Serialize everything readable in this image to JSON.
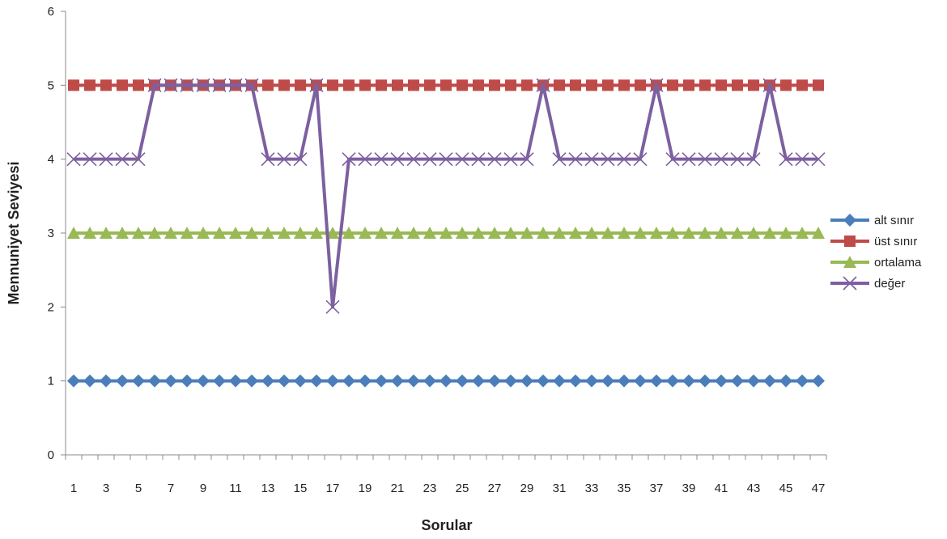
{
  "chart_data": {
    "type": "line",
    "xlabel": "Sorular",
    "ylabel": "Mennuniyet Seviyesi",
    "ylim": [
      0,
      6
    ],
    "yticks": [
      0,
      1,
      2,
      3,
      4,
      5,
      6
    ],
    "x": [
      1,
      2,
      3,
      4,
      5,
      6,
      7,
      8,
      9,
      10,
      11,
      12,
      13,
      14,
      15,
      16,
      17,
      18,
      19,
      20,
      21,
      22,
      23,
      24,
      25,
      26,
      27,
      28,
      29,
      30,
      31,
      32,
      33,
      34,
      35,
      36,
      37,
      38,
      39,
      40,
      41,
      42,
      43,
      44,
      45,
      46,
      47
    ],
    "xtick_labels": [
      "1",
      "3",
      "5",
      "7",
      "9",
      "11",
      "13",
      "15",
      "17",
      "19",
      "21",
      "23",
      "25",
      "27",
      "29",
      "31",
      "33",
      "35",
      "37",
      "39",
      "41",
      "43",
      "45",
      "47"
    ],
    "legend_position": "right",
    "grid": false,
    "series": [
      {
        "name": "alt sınır",
        "color": "#4a7ebb",
        "marker": "diamond",
        "values": [
          1,
          1,
          1,
          1,
          1,
          1,
          1,
          1,
          1,
          1,
          1,
          1,
          1,
          1,
          1,
          1,
          1,
          1,
          1,
          1,
          1,
          1,
          1,
          1,
          1,
          1,
          1,
          1,
          1,
          1,
          1,
          1,
          1,
          1,
          1,
          1,
          1,
          1,
          1,
          1,
          1,
          1,
          1,
          1,
          1,
          1,
          1
        ]
      },
      {
        "name": "üst sınır",
        "color": "#be4b48",
        "marker": "square",
        "values": [
          5,
          5,
          5,
          5,
          5,
          5,
          5,
          5,
          5,
          5,
          5,
          5,
          5,
          5,
          5,
          5,
          5,
          5,
          5,
          5,
          5,
          5,
          5,
          5,
          5,
          5,
          5,
          5,
          5,
          5,
          5,
          5,
          5,
          5,
          5,
          5,
          5,
          5,
          5,
          5,
          5,
          5,
          5,
          5,
          5,
          5,
          5
        ]
      },
      {
        "name": "ortalama",
        "color": "#98b954",
        "marker": "triangle",
        "values": [
          3,
          3,
          3,
          3,
          3,
          3,
          3,
          3,
          3,
          3,
          3,
          3,
          3,
          3,
          3,
          3,
          3,
          3,
          3,
          3,
          3,
          3,
          3,
          3,
          3,
          3,
          3,
          3,
          3,
          3,
          3,
          3,
          3,
          3,
          3,
          3,
          3,
          3,
          3,
          3,
          3,
          3,
          3,
          3,
          3,
          3,
          3
        ]
      },
      {
        "name": "değer",
        "color": "#7d60a0",
        "marker": "x",
        "values": [
          4,
          4,
          4,
          4,
          4,
          5,
          5,
          5,
          5,
          5,
          5,
          5,
          4,
          4,
          4,
          5,
          2,
          4,
          4,
          4,
          4,
          4,
          4,
          4,
          4,
          4,
          4,
          4,
          4,
          5,
          4,
          4,
          4,
          4,
          4,
          4,
          5,
          4,
          4,
          4,
          4,
          4,
          4,
          5,
          4,
          4,
          4
        ]
      }
    ]
  }
}
